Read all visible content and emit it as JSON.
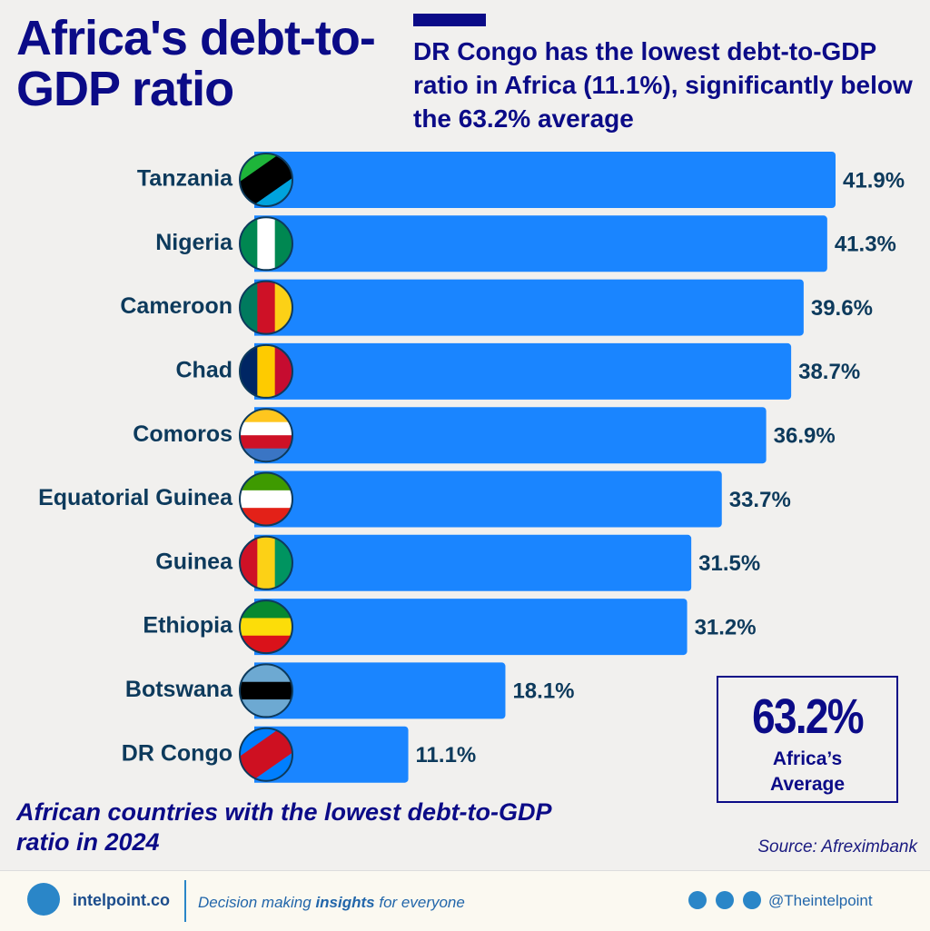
{
  "header": {
    "title": "Africa's debt-to-GDP ratio",
    "subtitle": "DR Congo has the lowest debt-to-GDP ratio in Africa (11.1%), significantly below the 63.2% average"
  },
  "chart_data": {
    "type": "bar",
    "orientation": "horizontal",
    "color": "#1a85ff",
    "categories": [
      "Tanzania",
      "Nigeria",
      "Cameroon",
      "Chad",
      "Comoros",
      "Equatorial Guinea",
      "Guinea",
      "Ethiopia",
      "Botswana",
      "DR Congo"
    ],
    "values": [
      41.9,
      41.3,
      39.6,
      38.7,
      36.9,
      33.7,
      31.5,
      31.2,
      18.1,
      11.1
    ],
    "value_labels": [
      "41.9%",
      "41.3%",
      "39.6%",
      "38.7%",
      "36.9%",
      "33.7%",
      "31.5%",
      "31.2%",
      "18.1%",
      "11.1%"
    ]
  },
  "caption": "African countries with the lowest debt-to-GDP ratio in 2024",
  "source": "Source: Afreximbank",
  "average": {
    "value": "63.2%",
    "label": "Africa’s Average"
  },
  "footer": {
    "brand": "intelpoint.co",
    "tagline_parts": [
      "Decision making ",
      "insights",
      " for everyone"
    ],
    "handle": "@Theintelpoint"
  }
}
